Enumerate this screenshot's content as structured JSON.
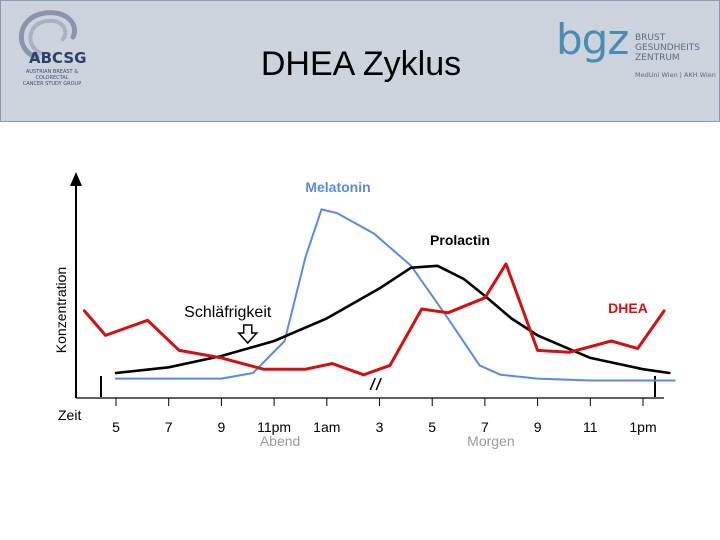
{
  "header": {
    "title": "DHEA Zyklus",
    "logo_left": {
      "text": "ABCSG",
      "subtitle_line1": "AUSTRIAN BREAST & COLORECTAL",
      "subtitle_line2": "CANCER STUDY GROUP"
    },
    "logo_right": {
      "text": "bgz",
      "line1": "BRUST",
      "line2": "GESUNDHEITS",
      "line3": "ZENTRUM",
      "subtitle": "MedUni Wien | AKH Wien"
    }
  },
  "chart_data": {
    "type": "line",
    "ylabel": "Konzentration",
    "xlabel": "Zeit",
    "categories": [
      "5",
      "7",
      "9",
      "11pm",
      "1am",
      "3",
      "5",
      "7",
      "9",
      "11",
      "1pm"
    ],
    "period_labels": [
      {
        "text": "Abend",
        "at": 3
      },
      {
        "text": "Morgen",
        "at": 7
      }
    ],
    "annotation": {
      "text": "Schläfrigkeit",
      "at": 2.5
    },
    "ylim": [
      0,
      100
    ],
    "colors": {
      "melatonin": "#5b8be0",
      "prolactin": "#000000",
      "dhea": "#d40f0f"
    },
    "series": [
      {
        "name": "Melatonin",
        "color": "#5b8be0",
        "points": [
          [
            0,
            5
          ],
          [
            1,
            5
          ],
          [
            2,
            5
          ],
          [
            2.6,
            8
          ],
          [
            3.2,
            25
          ],
          [
            3.6,
            70
          ],
          [
            3.9,
            95
          ],
          [
            4.2,
            93
          ],
          [
            4.9,
            82
          ],
          [
            5.6,
            65
          ],
          [
            6.3,
            37
          ],
          [
            6.9,
            12
          ],
          [
            7.3,
            7
          ],
          [
            8,
            5
          ],
          [
            9,
            4
          ],
          [
            10,
            4
          ],
          [
            10.6,
            4
          ]
        ]
      },
      {
        "name": "Prolactin",
        "color": "#000000",
        "points": [
          [
            0,
            8
          ],
          [
            1,
            11
          ],
          [
            2,
            17
          ],
          [
            3,
            25
          ],
          [
            4,
            37
          ],
          [
            5,
            53
          ],
          [
            5.6,
            64
          ],
          [
            6.1,
            65
          ],
          [
            6.6,
            58
          ],
          [
            7,
            49
          ],
          [
            7.5,
            37
          ],
          [
            8,
            28
          ],
          [
            9,
            16
          ],
          [
            10,
            10
          ],
          [
            10.5,
            8
          ]
        ]
      },
      {
        "name": "DHEA",
        "color": "#d40f0f",
        "points": [
          [
            -0.6,
            41
          ],
          [
            -0.2,
            28
          ],
          [
            0.6,
            36
          ],
          [
            1.2,
            20
          ],
          [
            2,
            16
          ],
          [
            2.8,
            10
          ],
          [
            3.6,
            10
          ],
          [
            4.1,
            13
          ],
          [
            4.7,
            7
          ],
          [
            5.2,
            12
          ],
          [
            5.8,
            42
          ],
          [
            6.3,
            40
          ],
          [
            7,
            48
          ],
          [
            7.4,
            66
          ],
          [
            8,
            20
          ],
          [
            8.6,
            19
          ],
          [
            9.4,
            25
          ],
          [
            9.9,
            21
          ],
          [
            10.4,
            41
          ]
        ]
      }
    ],
    "axis_break_at": 4.9
  }
}
